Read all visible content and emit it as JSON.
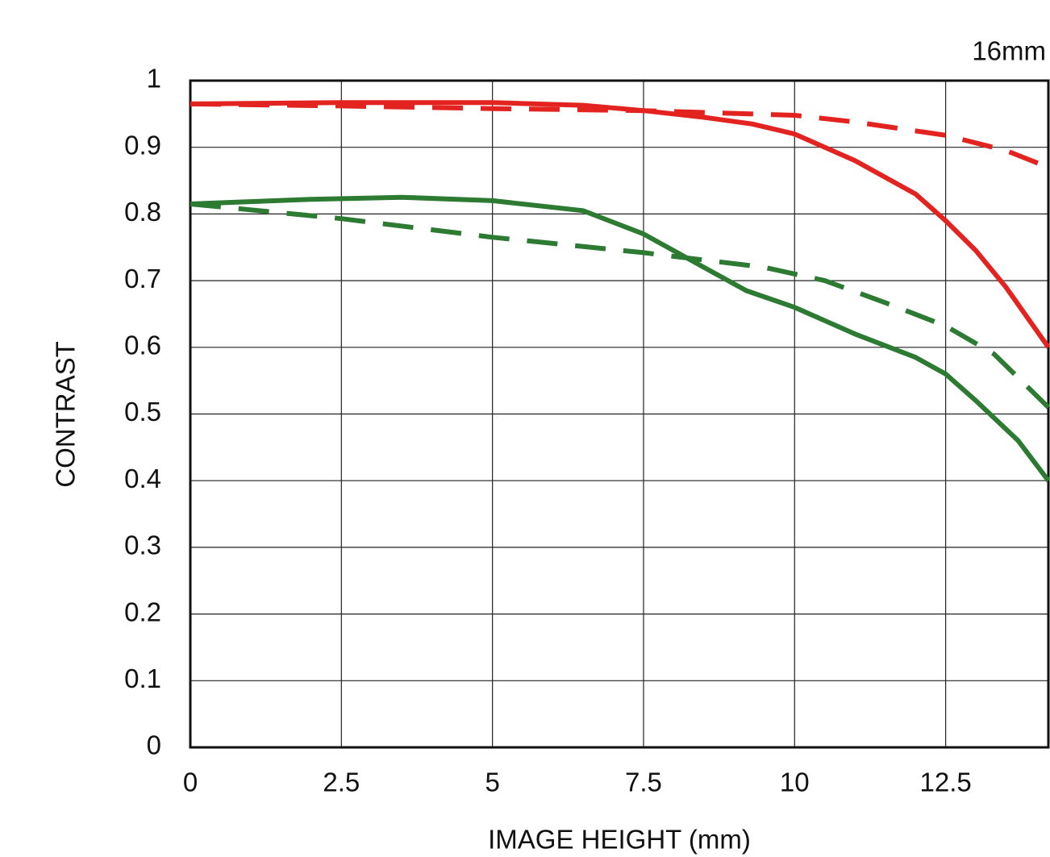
{
  "chart_data": {
    "type": "line",
    "title": "16mm",
    "x_label": "IMAGE HEIGHT (mm)",
    "y_label": "CONTRAST",
    "xlim": [
      0,
      14.2
    ],
    "ylim": [
      0,
      1
    ],
    "xticks": [
      0,
      2.5,
      5,
      7.5,
      10,
      12.5
    ],
    "yticks": [
      0,
      0.1,
      0.2,
      0.3,
      0.4,
      0.5,
      0.6,
      0.7,
      0.8,
      0.9,
      1
    ],
    "grid": true,
    "series": [
      {
        "color": "#e3231f",
        "dashed": false,
        "x": [
          0,
          2.5,
          5,
          6.5,
          7.5,
          8.5,
          9.3,
          10,
          11,
          12,
          12.5,
          13,
          13.5,
          14.2
        ],
        "values": [
          0.965,
          0.967,
          0.967,
          0.963,
          0.955,
          0.945,
          0.935,
          0.92,
          0.88,
          0.83,
          0.79,
          0.745,
          0.69,
          0.6
        ]
      },
      {
        "color": "#e3231f",
        "dashed": true,
        "x": [
          0,
          2.5,
          5,
          7.5,
          10,
          11,
          12.5,
          13.5,
          14.2
        ],
        "values": [
          0.965,
          0.962,
          0.958,
          0.955,
          0.948,
          0.938,
          0.918,
          0.895,
          0.87
        ]
      },
      {
        "color": "#2d7a33",
        "dashed": false,
        "x": [
          0,
          2,
          3.5,
          5,
          6.5,
          7.5,
          8.5,
          9.2,
          10,
          11,
          12,
          12.5,
          13,
          13.7,
          14.2
        ],
        "values": [
          0.815,
          0.822,
          0.825,
          0.82,
          0.805,
          0.77,
          0.72,
          0.685,
          0.66,
          0.62,
          0.585,
          0.56,
          0.52,
          0.46,
          0.4
        ]
      },
      {
        "color": "#2d7a33",
        "dashed": true,
        "x": [
          0,
          2.5,
          5,
          7.5,
          9.5,
          10.5,
          11.5,
          12.5,
          13.3,
          14.2
        ],
        "values": [
          0.815,
          0.793,
          0.765,
          0.742,
          0.72,
          0.7,
          0.667,
          0.632,
          0.59,
          0.51
        ]
      }
    ]
  }
}
